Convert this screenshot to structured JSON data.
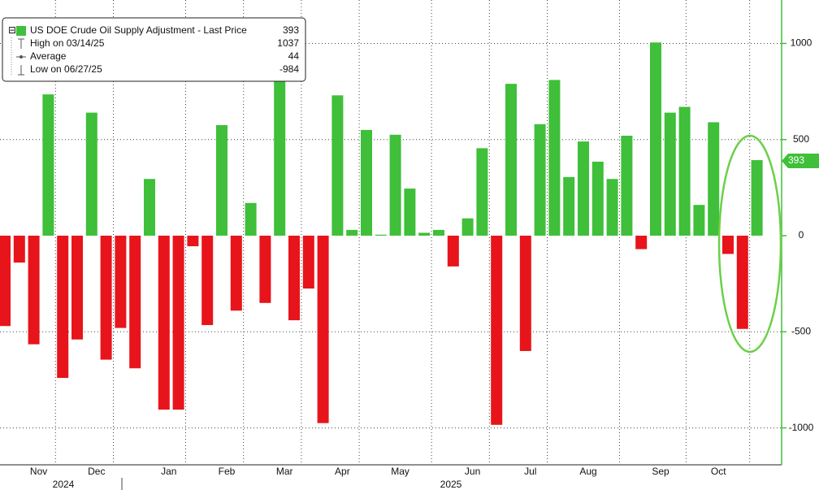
{
  "chart_data": {
    "type": "bar",
    "series": [
      {
        "name": "US DOE Crude Oil Supply Adjustment - Last Price",
        "values": [
          -470,
          -140,
          -565,
          735,
          -740,
          -540,
          640,
          -645,
          -480,
          -690,
          295,
          -905,
          -905,
          -55,
          -465,
          575,
          -390,
          170,
          -350,
          1037,
          -440,
          -275,
          -975,
          730,
          30,
          550,
          5,
          525,
          245,
          15,
          30,
          -160,
          90,
          455,
          -984,
          790,
          -600,
          580,
          810,
          305,
          490,
          385,
          295,
          520,
          -70,
          1005,
          640,
          670,
          160,
          590,
          -95,
          -485,
          393
        ]
      }
    ],
    "categories": [
      null,
      null,
      "Nov",
      null,
      null,
      null,
      "Dec",
      null,
      null,
      null,
      null,
      "Jan",
      null,
      null,
      null,
      "Feb",
      null,
      null,
      null,
      "Mar",
      null,
      null,
      null,
      "Apr",
      null,
      null,
      null,
      "May",
      null,
      null,
      null,
      null,
      "Jun",
      null,
      null,
      null,
      "Jul",
      null,
      null,
      null,
      "Aug",
      null,
      null,
      null,
      null,
      "Sep",
      null,
      null,
      null,
      "Oct",
      null,
      null,
      null
    ],
    "years": [
      "2024",
      "2025"
    ],
    "positive_color": "#3fbf3a",
    "negative_color": "#e8141b",
    "ylim": [
      -1192,
      1226
    ],
    "yticks": [
      -1000,
      -500,
      0,
      500,
      1000
    ],
    "grid": true,
    "legend": {
      "rows": [
        {
          "label": "High on 03/14/25",
          "value": 1037
        },
        {
          "label": "Average",
          "value": 44
        },
        {
          "label": "Low on 06/27/25",
          "value": -984
        }
      ]
    }
  }
}
